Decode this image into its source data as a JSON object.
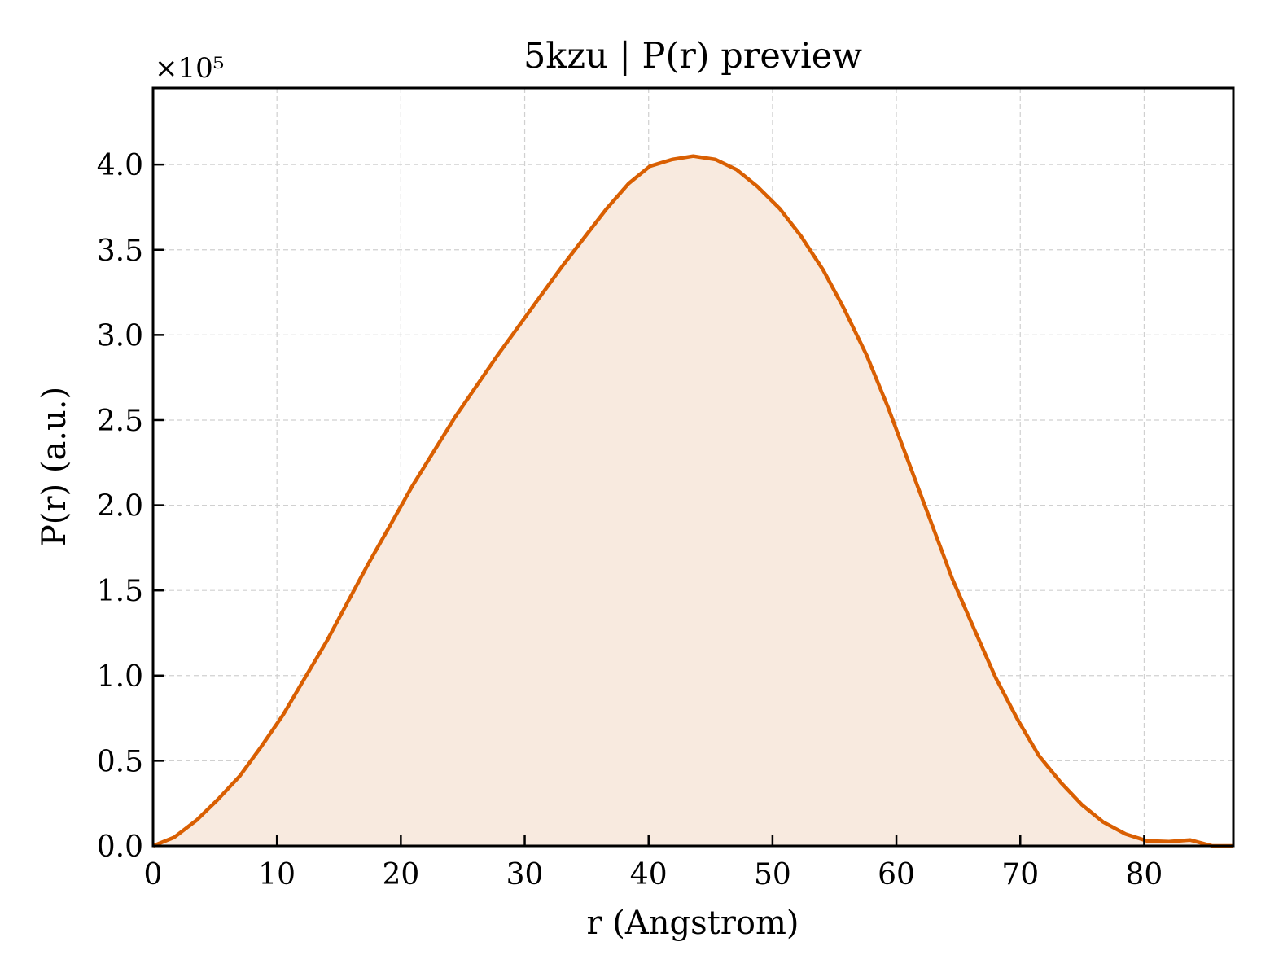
{
  "chart_data": {
    "type": "area",
    "title": "5kzu | P(r) preview",
    "xlabel": "r (Angstrom)",
    "ylabel": "P(r) (a.u.)",
    "y_multiplier_label": "×10⁵",
    "xlim": [
      0,
      87.2
    ],
    "ylim": [
      0,
      4.45
    ],
    "x_ticks": [
      0,
      10,
      20,
      30,
      40,
      50,
      60,
      70,
      80
    ],
    "x_tick_labels": [
      "0",
      "10",
      "20",
      "30",
      "40",
      "50",
      "60",
      "70",
      "80"
    ],
    "y_ticks": [
      0.0,
      0.5,
      1.0,
      1.5,
      2.0,
      2.5,
      3.0,
      3.5,
      4.0
    ],
    "y_tick_labels": [
      "0.0",
      "0.5",
      "1.0",
      "1.5",
      "2.0",
      "2.5",
      "3.0",
      "3.5",
      "4.0"
    ],
    "grid": true,
    "line_color": "#d95f02",
    "fill_color": "#f8eadf",
    "series": [
      {
        "x": [
          0,
          1.7,
          3.5,
          5.2,
          7.0,
          8.7,
          10.5,
          12.2,
          14.0,
          15.7,
          17.4,
          19.2,
          20.9,
          22.7,
          24.4,
          26.2,
          27.9,
          29.7,
          31.4,
          33.1,
          34.9,
          36.6,
          38.4,
          40.1,
          41.9,
          43.6,
          45.4,
          47.1,
          48.8,
          50.6,
          52.3,
          54.1,
          55.8,
          57.6,
          59.3,
          61.0,
          62.8,
          64.5,
          66.3,
          68.0,
          69.8,
          71.5,
          73.3,
          75.0,
          76.7,
          78.5,
          80.2,
          82.0,
          83.7,
          85.5,
          87.2
        ],
        "y": [
          0.0,
          0.05,
          0.15,
          0.27,
          0.41,
          0.58,
          0.77,
          0.98,
          1.2,
          1.43,
          1.66,
          1.89,
          2.11,
          2.32,
          2.52,
          2.71,
          2.89,
          3.07,
          3.24,
          3.41,
          3.58,
          3.74,
          3.89,
          3.99,
          4.03,
          4.05,
          4.03,
          3.97,
          3.87,
          3.74,
          3.58,
          3.38,
          3.15,
          2.88,
          2.58,
          2.25,
          1.9,
          1.57,
          1.27,
          0.99,
          0.74,
          0.53,
          0.37,
          0.24,
          0.14,
          0.07,
          0.03,
          0.025,
          0.035,
          0.0,
          0.0
        ]
      }
    ]
  }
}
